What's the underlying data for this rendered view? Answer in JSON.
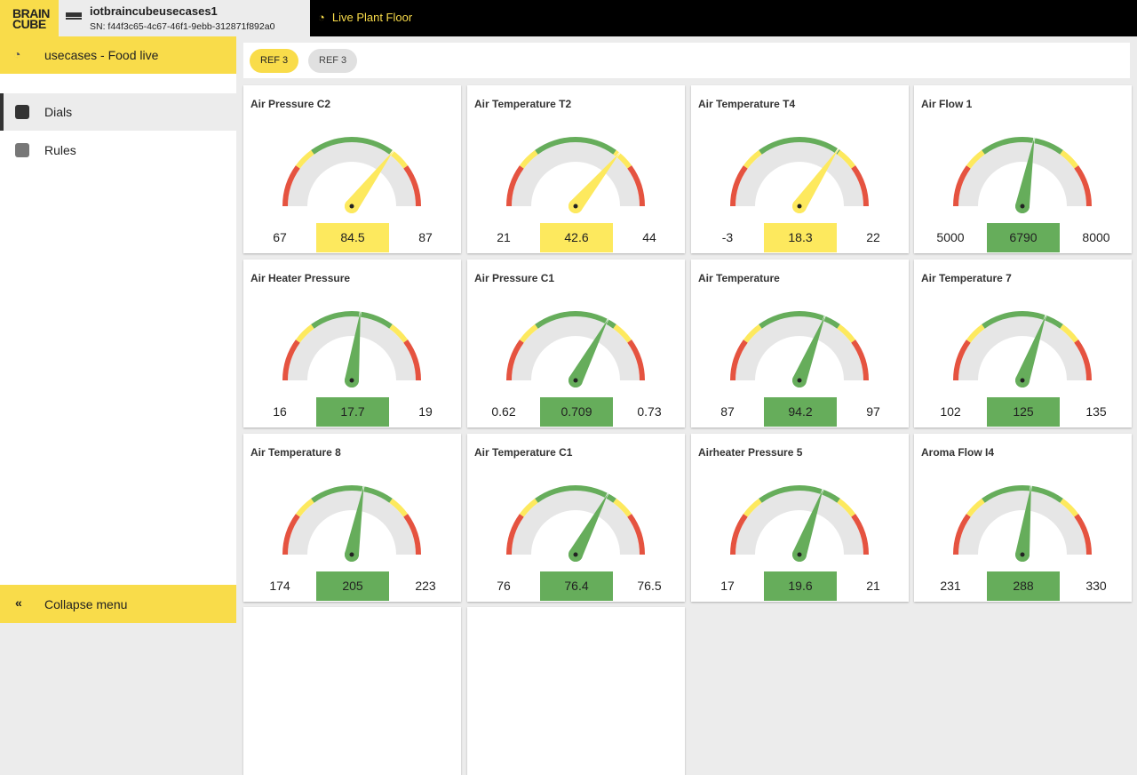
{
  "logo": "BRAIN CUBE",
  "device": {
    "name": "iotbraincubeusecases1",
    "sn": "SN: f44f3c65-4c67-46f1-9ebb-312871f892a0",
    "icon": "monitor-icon"
  },
  "live_tab": {
    "label": "Live Plant Floor",
    "icon": "gauge-icon"
  },
  "sidebar": {
    "project": "usecases - Food live",
    "items": [
      {
        "label": "Dials",
        "icon": "gauge-icon",
        "active": true
      },
      {
        "label": "Rules",
        "icon": "rules-icon",
        "active": false
      }
    ],
    "collapse": "Collapse menu"
  },
  "chips": [
    {
      "label": "REF 3",
      "active": true
    },
    {
      "label": "REF 3",
      "active": false
    }
  ],
  "colors": {
    "yellow": "#fde95e",
    "green": "#66ad5b",
    "red": "#e55340",
    "track": "#e6e6e6",
    "brand": "#f9dc4a"
  },
  "dials": [
    {
      "title": "Air Pressure C2",
      "min": "67",
      "value": "84.5",
      "max": "87",
      "status": "yellow",
      "needle": 0.705
    },
    {
      "title": "Air Temperature T2",
      "min": "21",
      "value": "42.6",
      "max": "44",
      "status": "yellow",
      "needle": 0.72
    },
    {
      "title": "Air Temperature T4",
      "min": "-3",
      "value": "18.3",
      "max": "22",
      "status": "yellow",
      "needle": 0.69
    },
    {
      "title": "Air Flow 1",
      "min": "5000",
      "value": "6790",
      "max": "8000",
      "status": "green",
      "needle": 0.555
    },
    {
      "title": "Air Heater Pressure",
      "min": "16",
      "value": "17.7",
      "max": "19",
      "status": "green",
      "needle": 0.54
    },
    {
      "title": "Air Pressure C1",
      "min": "0.62",
      "value": "0.709",
      "max": "0.73",
      "status": "green",
      "needle": 0.655
    },
    {
      "title": "Air Temperature",
      "min": "87",
      "value": "94.2",
      "max": "97",
      "status": "green",
      "needle": 0.62
    },
    {
      "title": "Air Temperature 7",
      "min": "102",
      "value": "125",
      "max": "135",
      "status": "green",
      "needle": 0.61
    },
    {
      "title": "Air Temperature 8",
      "min": "174",
      "value": "205",
      "max": "223",
      "status": "green",
      "needle": 0.555
    },
    {
      "title": "Air Temperature C1",
      "min": "76",
      "value": "76.4",
      "max": "76.5",
      "status": "green",
      "needle": 0.655
    },
    {
      "title": "Airheater Pressure 5",
      "min": "17",
      "value": "19.6",
      "max": "21",
      "status": "green",
      "needle": 0.61
    },
    {
      "title": "Aroma Flow I4",
      "min": "231",
      "value": "288",
      "max": "330",
      "status": "green",
      "needle": 0.54
    }
  ]
}
